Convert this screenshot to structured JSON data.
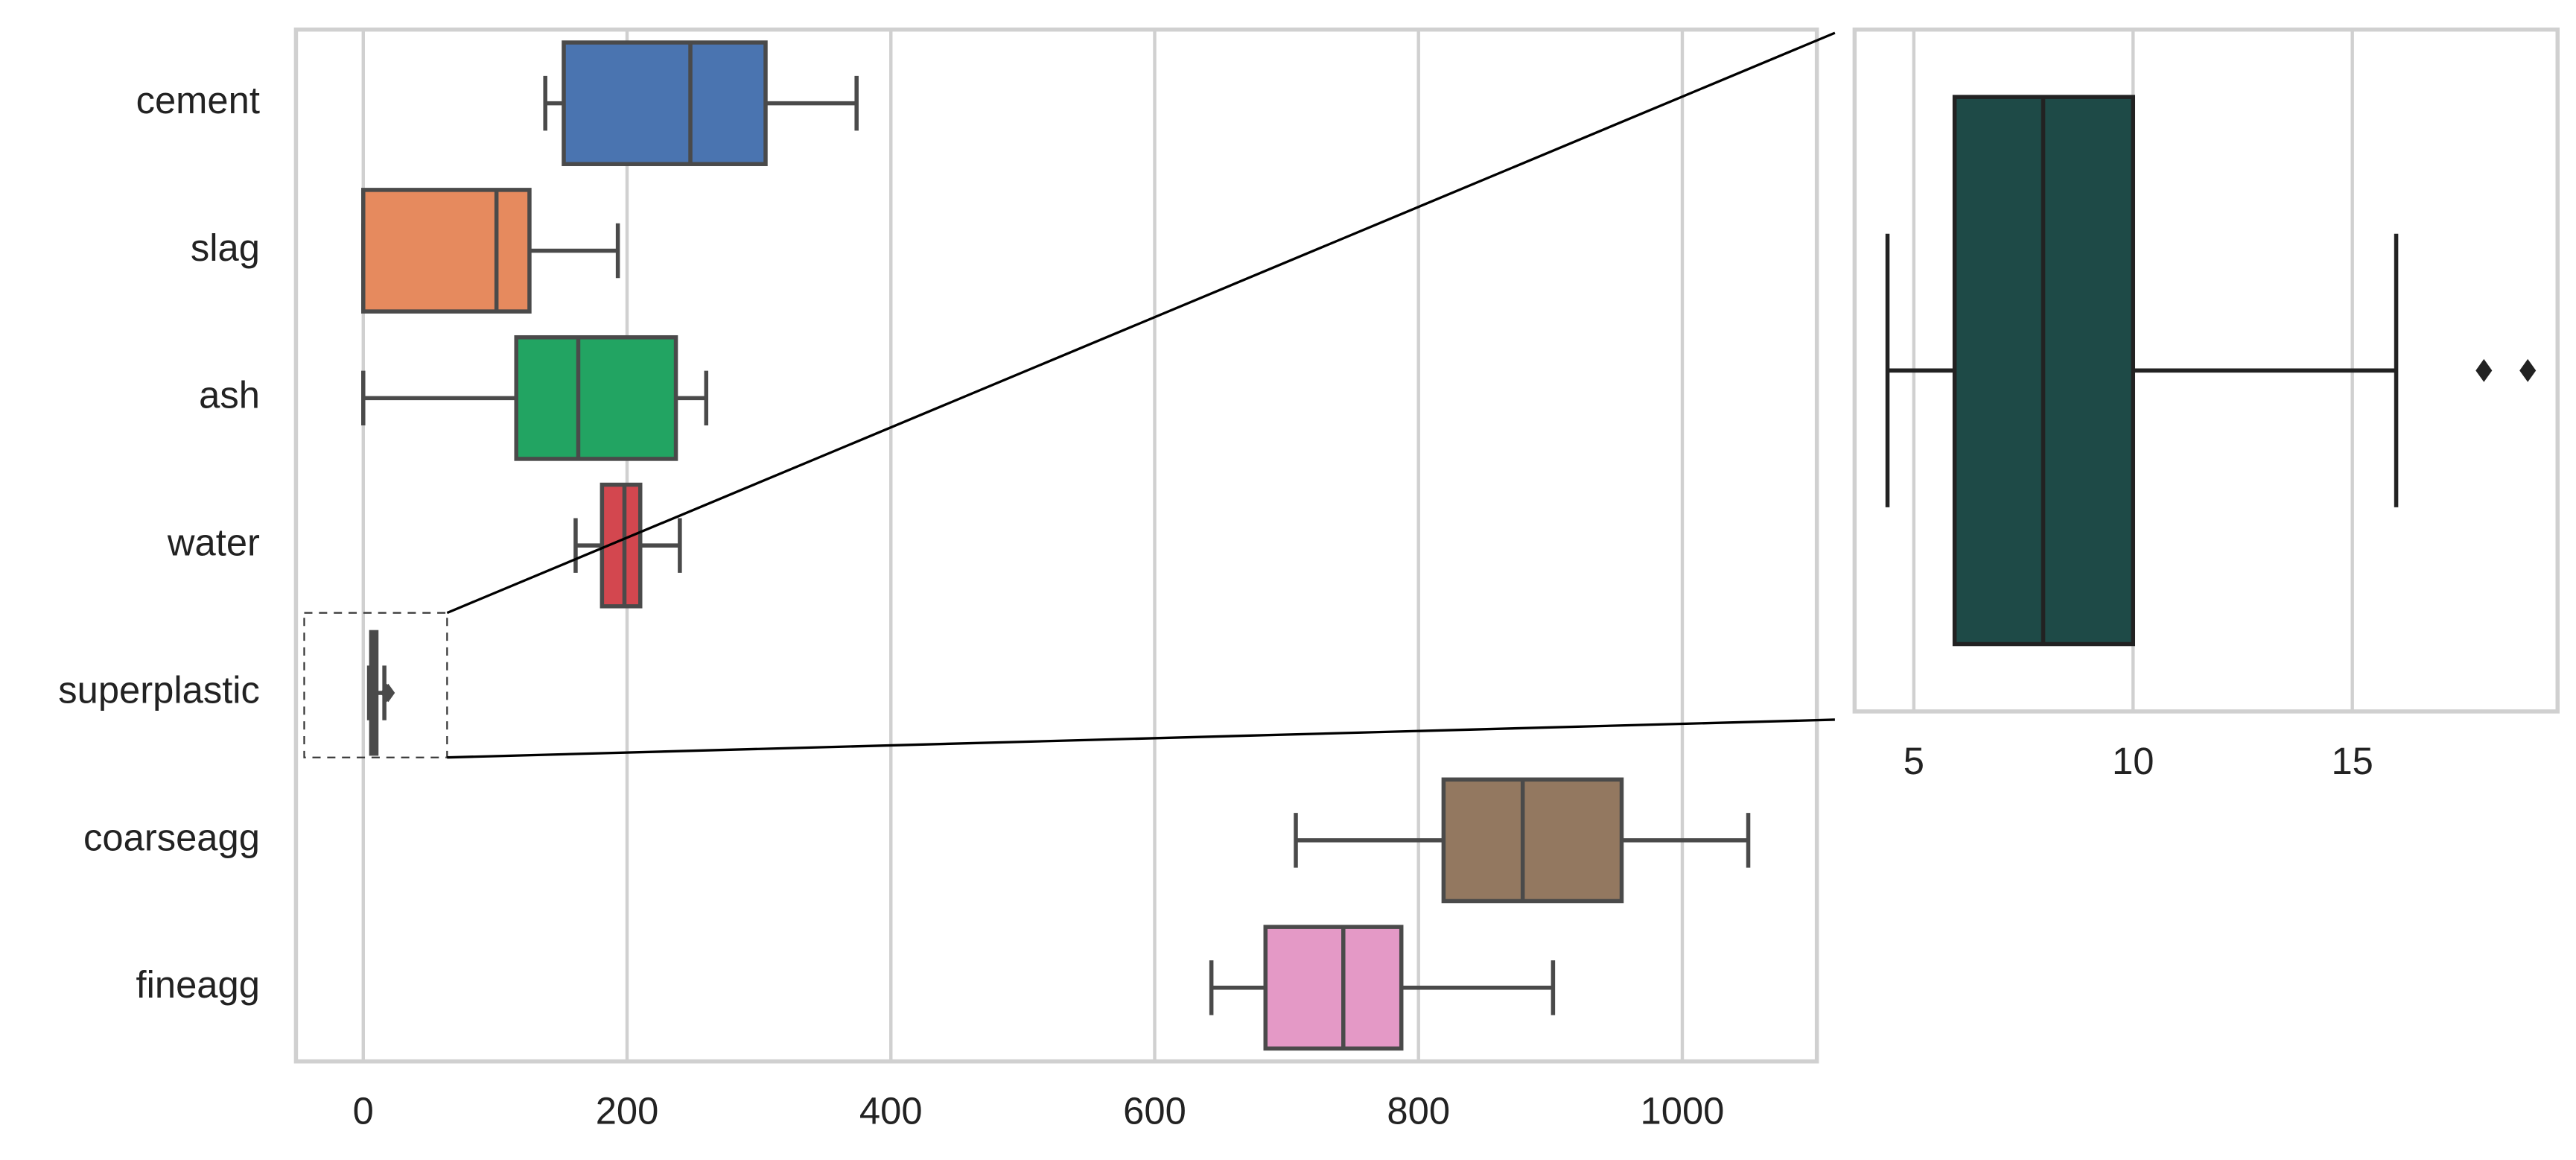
{
  "chart_data": [
    {
      "type": "box",
      "categories": [
        "cement",
        "slag",
        "ash",
        "water",
        "superplastic",
        "coarseagg",
        "fineagg"
      ],
      "values": [
        {
          "whislo": 138,
          "q1": 152,
          "med": 248,
          "q3": 305,
          "whishi": 374
        },
        {
          "whislo": 0,
          "q1": 0,
          "med": 101,
          "q3": 126,
          "whishi": 193
        },
        {
          "whislo": 0,
          "q1": 116,
          "med": 163,
          "q3": 237,
          "whishi": 260
        },
        {
          "whislo": 161,
          "q1": 181,
          "med": 198,
          "q3": 210,
          "whishi": 240
        },
        {
          "whislo": 4.4,
          "q1": 6,
          "med": 8,
          "q3": 10,
          "whishi": 16,
          "fliers": [
            18,
            19
          ]
        },
        {
          "whislo": 707,
          "q1": 819,
          "med": 879,
          "q3": 954,
          "whishi": 1050
        },
        {
          "whislo": 643,
          "q1": 684,
          "med": 743,
          "q3": 787,
          "whishi": 902
        }
      ],
      "colors": [
        "#4a74b0",
        "#e68a5e",
        "#22a462",
        "#d3474f",
        "#555555",
        "#937860",
        "#e499c6"
      ],
      "xlim": [
        -51,
        1102
      ],
      "xticks": [
        0,
        200,
        400,
        600,
        800,
        1000
      ],
      "grid": true
    },
    {
      "type": "box",
      "values": [
        {
          "whislo": 4.4,
          "q1": 5.93,
          "med": 7.95,
          "q3": 10,
          "whishi": 16,
          "fliers": [
            18,
            19
          ]
        }
      ],
      "colors": [
        "#1e4a47"
      ],
      "xlim": [
        3.65,
        19.68
      ],
      "xticks": [
        5,
        10,
        15
      ],
      "grid": true
    }
  ]
}
